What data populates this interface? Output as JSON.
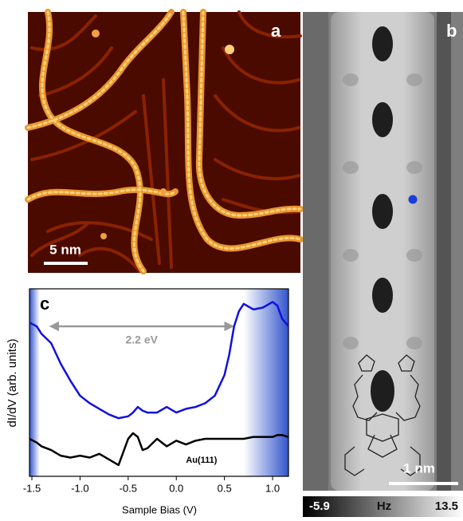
{
  "panels": {
    "a": {
      "label": "a",
      "scale_bar": "5 nm"
    },
    "b": {
      "label": "b",
      "scale_bar": "1 nm",
      "colorbar": {
        "min": -5.9,
        "unit": "Hz",
        "max": 13.5
      }
    }
  },
  "chart_data": {
    "type": "line",
    "panel_label": "c",
    "xlabel": "Sample Bias (V)",
    "ylabel": "dI/dV (arb. units)",
    "xlim": [
      -1.525,
      1.165
    ],
    "ylim": [
      0,
      100
    ],
    "xticks": [
      -1.5,
      {
        "value": -1,
        "label": "-1.0"
      },
      -0.5,
      {
        "value": 0,
        "label": "0.0"
      },
      0.5,
      {
        "value": 1,
        "label": "1.0"
      }
    ],
    "shaded": [
      [
        -1.525,
        -1.42
      ],
      [
        0.7,
        1.165
      ]
    ],
    "shade_color": "#3355cc",
    "annotations": [
      {
        "text": "2.2 eV",
        "x": [
          -1.3,
          0.58
        ],
        "y": 80,
        "color": "#999999"
      }
    ],
    "x": [
      -1.525,
      -1.45,
      -1.4,
      -1.3,
      -1.2,
      -1.1,
      -1.0,
      -0.9,
      -0.8,
      -0.7,
      -0.6,
      -0.5,
      -0.45,
      -0.4,
      -0.35,
      -0.3,
      -0.2,
      -0.1,
      0.0,
      0.1,
      0.2,
      0.3,
      0.4,
      0.5,
      0.55,
      0.6,
      0.65,
      0.7,
      0.8,
      0.9,
      1.0,
      1.05,
      1.1,
      1.165
    ],
    "series": [
      {
        "color": "#1010e0",
        "values": [
          82,
          80,
          76,
          71,
          60,
          51,
          43,
          39,
          36,
          33,
          31,
          32,
          34,
          37,
          35,
          34,
          34,
          37,
          34,
          36,
          37,
          39,
          43,
          54,
          65,
          80,
          88,
          92,
          89,
          90,
          93,
          91,
          84,
          80
        ]
      },
      {
        "name": "Au(111)",
        "color": "#000000",
        "values": [
          20,
          18,
          16,
          14,
          11,
          10,
          11,
          10,
          12,
          9,
          6,
          20,
          23,
          21,
          14,
          15,
          20,
          16,
          19,
          17,
          19,
          20,
          20,
          20,
          20,
          20,
          20,
          20,
          21,
          21,
          21,
          22,
          22,
          21
        ]
      }
    ]
  }
}
